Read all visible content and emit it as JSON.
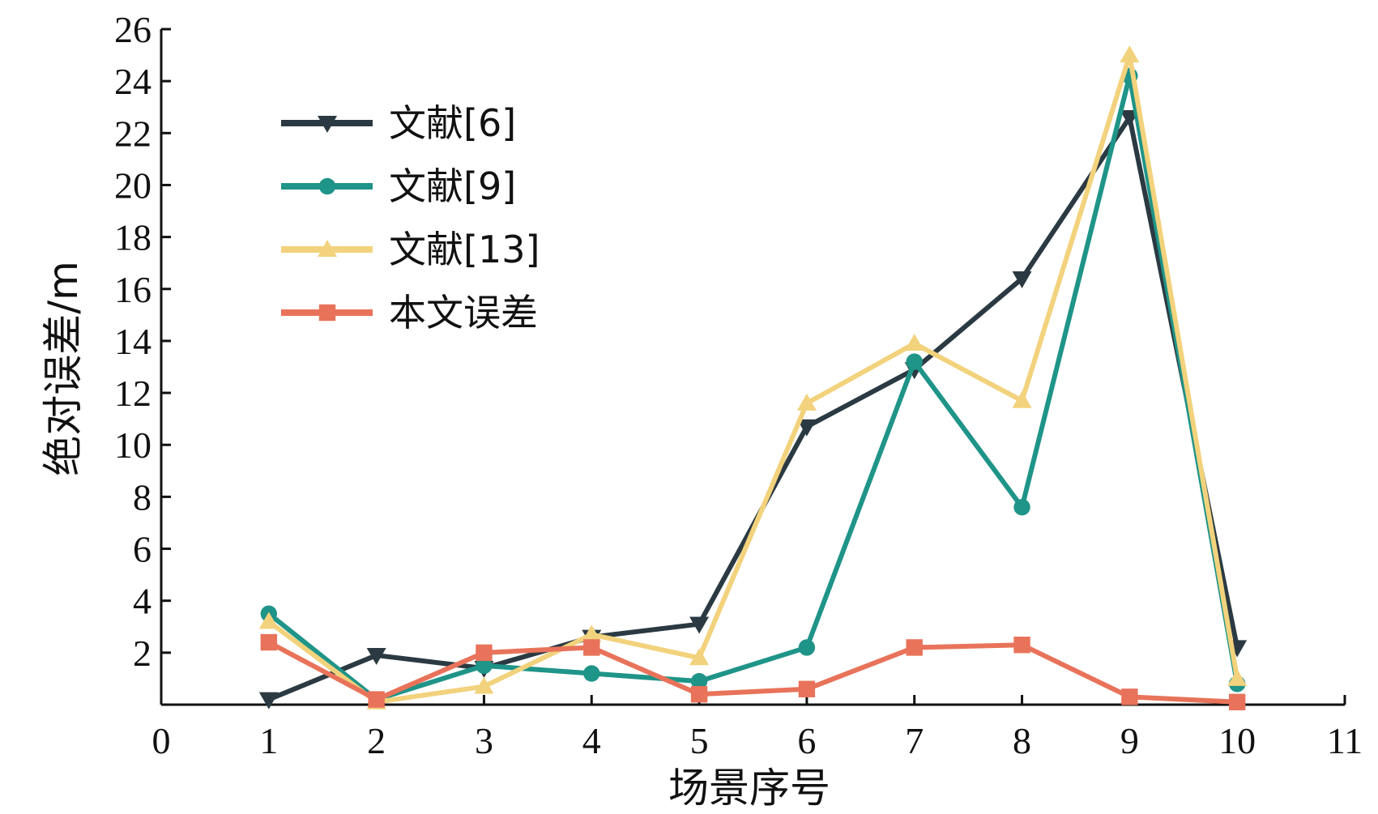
{
  "chart_data": {
    "type": "line",
    "title": "",
    "xlabel": "场景序号",
    "ylabel": "绝对误差/m",
    "xlim": [
      0,
      11
    ],
    "ylim": [
      0,
      26
    ],
    "x_ticks": [
      0,
      1,
      2,
      3,
      4,
      5,
      6,
      7,
      8,
      9,
      10,
      11
    ],
    "y_ticks": [
      2,
      4,
      6,
      8,
      10,
      12,
      14,
      16,
      18,
      20,
      22,
      24,
      26
    ],
    "grid": false,
    "legend_position": "top-left",
    "x": [
      1,
      2,
      3,
      4,
      5,
      6,
      7,
      8,
      9,
      10
    ],
    "series": [
      {
        "name": "文献[6]",
        "marker": "triangle-down",
        "color": "#2b3a42",
        "values": [
          0.2,
          1.9,
          1.4,
          2.6,
          3.1,
          10.7,
          12.9,
          16.4,
          22.6,
          2.2
        ]
      },
      {
        "name": "文献[9]",
        "marker": "circle",
        "color": "#1f9488",
        "values": [
          3.5,
          0.2,
          1.5,
          1.2,
          0.9,
          2.2,
          13.2,
          7.6,
          24.2,
          0.8
        ]
      },
      {
        "name": "文献[13]",
        "marker": "triangle-up",
        "color": "#f2d27c",
        "values": [
          3.2,
          0.1,
          0.7,
          2.7,
          1.8,
          11.6,
          13.9,
          11.7,
          25.0,
          1.0
        ]
      },
      {
        "name": "本文误差",
        "marker": "square",
        "color": "#e8735a",
        "values": [
          2.4,
          0.2,
          2.0,
          2.2,
          0.4,
          0.6,
          2.2,
          2.3,
          0.3,
          0.1
        ]
      }
    ]
  }
}
